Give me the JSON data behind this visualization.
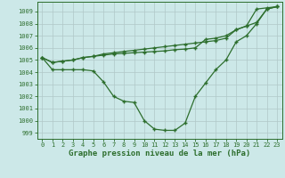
{
  "title": "Graphe pression niveau de la mer (hPa)",
  "hours": [
    0,
    1,
    2,
    3,
    4,
    5,
    6,
    7,
    8,
    9,
    10,
    11,
    12,
    13,
    14,
    15,
    16,
    17,
    18,
    19,
    20,
    21,
    22,
    23
  ],
  "line_zigzag": [
    1005.2,
    1004.2,
    1004.2,
    1004.2,
    1004.2,
    1004.1,
    1003.2,
    1002.0,
    1001.6,
    1001.5,
    1000.0,
    999.3,
    999.2,
    999.2,
    999.8,
    1002.0,
    1003.1,
    1004.2,
    1005.0,
    1006.5,
    1007.0,
    1008.0,
    1009.2,
    1009.4
  ],
  "line_upper": [
    1005.2,
    1004.8,
    1004.9,
    1005.0,
    1005.2,
    1005.3,
    1005.5,
    1005.6,
    1005.7,
    1005.8,
    1005.9,
    1006.0,
    1006.1,
    1006.2,
    1006.3,
    1006.4,
    1006.5,
    1006.6,
    1006.8,
    1007.5,
    1007.8,
    1008.1,
    1009.2,
    1009.4
  ],
  "line_lower": [
    1005.2,
    1004.8,
    1004.9,
    1005.0,
    1005.2,
    1005.3,
    1005.4,
    1005.5,
    1005.55,
    1005.6,
    1005.65,
    1005.7,
    1005.75,
    1005.85,
    1005.9,
    1006.0,
    1006.7,
    1006.8,
    1007.0,
    1007.5,
    1007.8,
    1009.2,
    1009.3,
    1009.4
  ],
  "line_color": "#2d6e2d",
  "bg_color": "#cce8e8",
  "grid_color": "#b0c8c8",
  "ylim": [
    998.5,
    1009.8
  ],
  "yticks": [
    999,
    1000,
    1001,
    1002,
    1003,
    1004,
    1005,
    1006,
    1007,
    1008,
    1009
  ],
  "title_fontsize": 6.5,
  "tick_fontsize": 5.0
}
